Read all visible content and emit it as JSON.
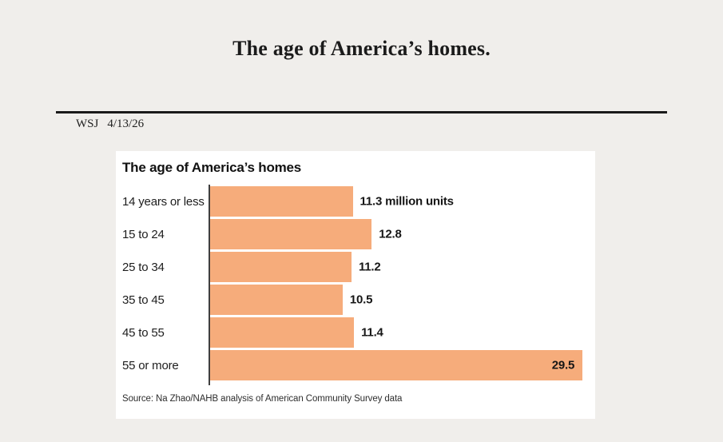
{
  "page": {
    "background": "#F0EEEB"
  },
  "header": {
    "title": "The age of America’s homes.",
    "byline": {
      "publication": "WSJ",
      "date": "4/13/26"
    }
  },
  "chart_data": {
    "type": "bar",
    "orientation": "horizontal",
    "title": "The age of America’s homes",
    "categories": [
      "14 years or less",
      "15 to 24",
      "25 to 34",
      "35 to 45",
      "45 to 55",
      "55 or more"
    ],
    "values": [
      11.3,
      12.8,
      11.2,
      10.5,
      11.4,
      29.5
    ],
    "value_labels": [
      "11.3 million units",
      "12.8",
      "11.2",
      "10.5",
      "11.4",
      "29.5"
    ],
    "unit": "million units",
    "xlim": [
      0,
      30
    ],
    "grid": false,
    "legend": false,
    "bar_color": "#F6AC7B",
    "axis_color": "#3F3F3F",
    "value_label_inside": [
      false,
      false,
      false,
      false,
      false,
      true
    ],
    "source": "Source: Na Zhao/NAHB analysis of American Community Survey data"
  }
}
